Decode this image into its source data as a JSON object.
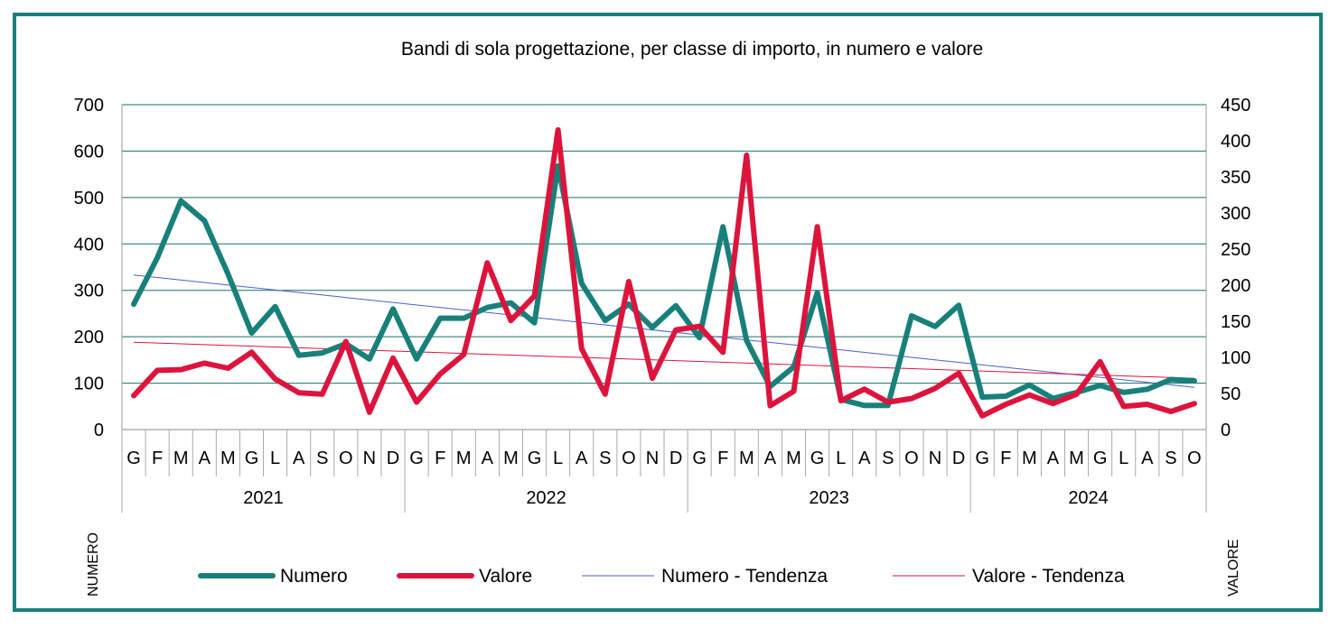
{
  "chart_data": {
    "type": "line",
    "title": "Bandi di sola progettazione, per classe di importo, in numero e valore",
    "ylabel": "NUMERO",
    "y2label": "VALORE",
    "ylim": [
      0,
      700
    ],
    "y2lim": [
      0,
      450
    ],
    "yticks": [
      "0",
      "100",
      "200",
      "300",
      "400",
      "500",
      "600",
      "700"
    ],
    "y2ticks": [
      "0",
      "50",
      "100",
      "150",
      "200",
      "250",
      "300",
      "350",
      "400",
      "450"
    ],
    "grid": true,
    "legend_position": "bottom",
    "months": [
      "G",
      "F",
      "M",
      "A",
      "M",
      "G",
      "L",
      "A",
      "S",
      "O",
      "N",
      "D",
      "G",
      "F",
      "M",
      "A",
      "M",
      "G",
      "L",
      "A",
      "S",
      "O",
      "N",
      "D",
      "G",
      "F",
      "M",
      "A",
      "M",
      "G",
      "L",
      "A",
      "S",
      "O",
      "N",
      "D",
      "G",
      "F",
      "M",
      "A",
      "M",
      "G",
      "L",
      "A",
      "S",
      "O"
    ],
    "years": [
      {
        "label": "2021",
        "count": 12
      },
      {
        "label": "2022",
        "count": 12
      },
      {
        "label": "2023",
        "count": 12
      },
      {
        "label": "2024",
        "count": 10
      }
    ],
    "series": [
      {
        "name": "Numero",
        "axis": "left",
        "color": "#17807a",
        "values": [
          270,
          370,
          493,
          450,
          335,
          208,
          265,
          160,
          165,
          185,
          152,
          260,
          152,
          240,
          240,
          263,
          273,
          230,
          568,
          315,
          235,
          270,
          220,
          267,
          198,
          437,
          192,
          93,
          135,
          295,
          65,
          52,
          52,
          245,
          222,
          268,
          70,
          72,
          96,
          67,
          80,
          95,
          80,
          87,
          108,
          105
        ]
      },
      {
        "name": "Valore",
        "axis": "right",
        "color": "#dc143c",
        "values": [
          47,
          82,
          83,
          92,
          85,
          107,
          70,
          51,
          49,
          122,
          24,
          99,
          38,
          77,
          104,
          231,
          151,
          185,
          415,
          112,
          49,
          205,
          71,
          138,
          143,
          107,
          380,
          33,
          53,
          281,
          40,
          56,
          38,
          43,
          57,
          78,
          19,
          35,
          48,
          36,
          49,
          94,
          32,
          35,
          25,
          36
        ]
      },
      {
        "name": "Numero - Tendenza",
        "axis": "left",
        "color": "#4b5fc8",
        "trend": [
          333,
          91
        ]
      },
      {
        "name": "Valore - Tendenza",
        "axis": "right",
        "color": "#dc143c",
        "trend": [
          121,
          71
        ]
      }
    ]
  }
}
